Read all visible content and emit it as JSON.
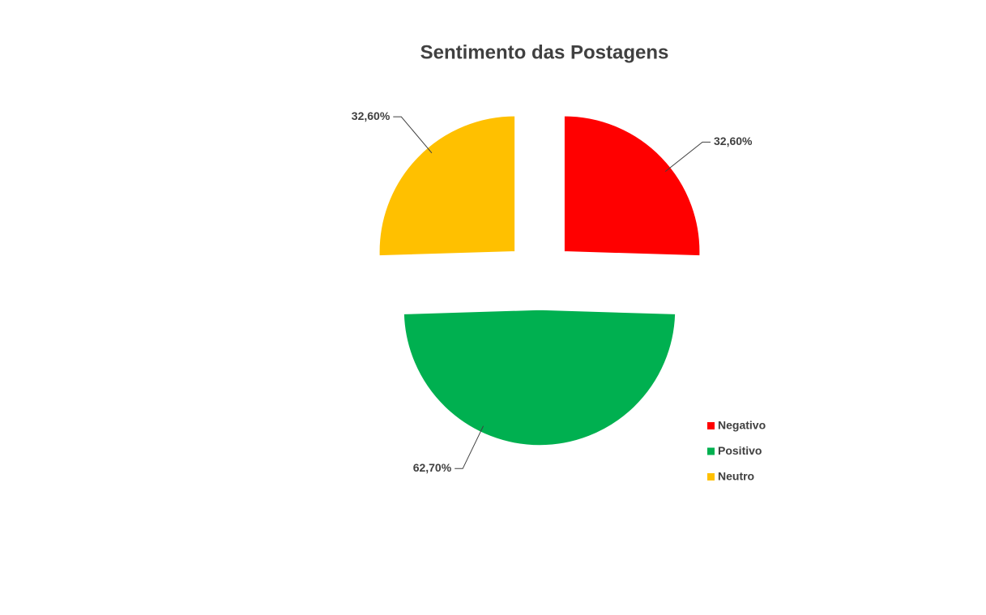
{
  "chart_data": {
    "type": "pie",
    "title": "Sentimento das Postagens",
    "categories": [
      "Negativo",
      "Positivo",
      "Neutro"
    ],
    "values": [
      32.6,
      62.7,
      32.6
    ],
    "value_labels": [
      "32,60%",
      "62,70%",
      "32,60%"
    ],
    "colors": [
      "#ff0000",
      "#00b050",
      "#ffc000"
    ],
    "legend": "right"
  }
}
